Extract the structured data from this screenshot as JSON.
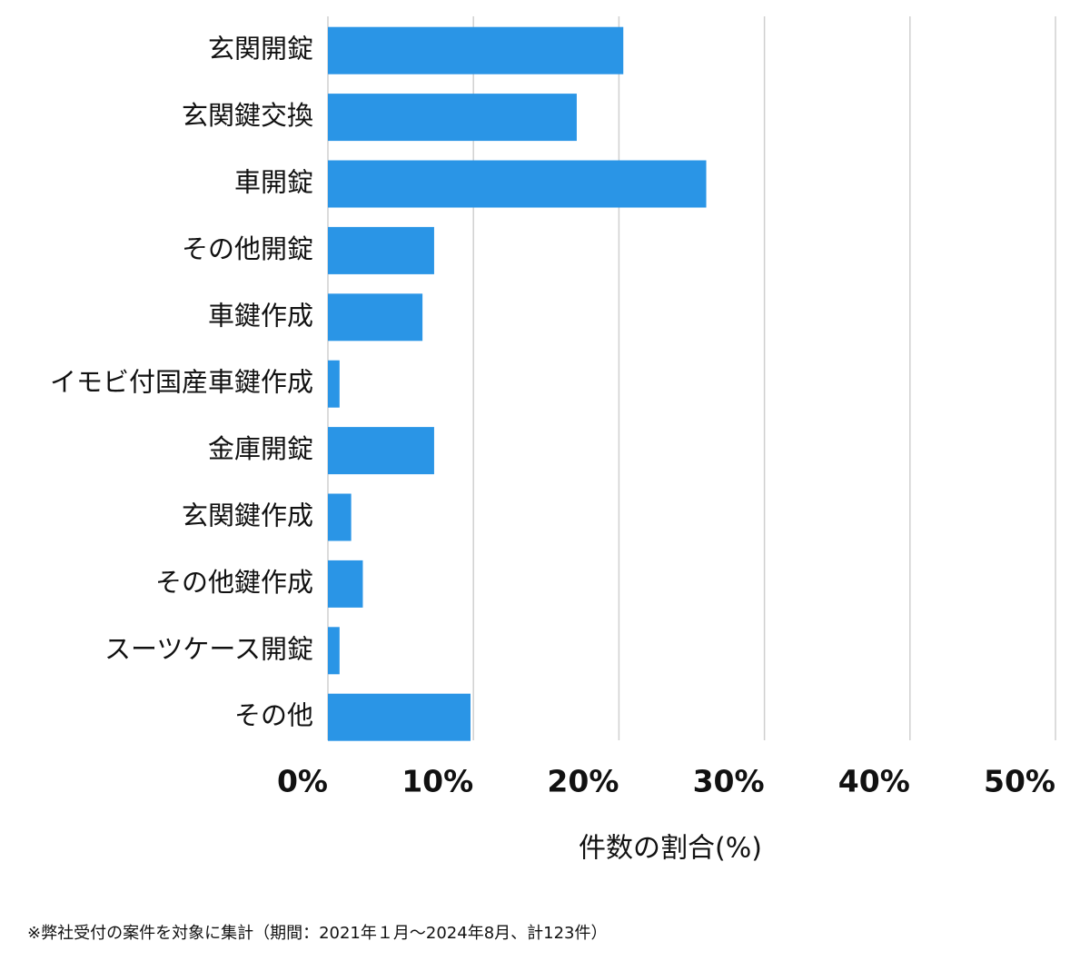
{
  "chart_data": {
    "type": "bar",
    "orientation": "horizontal",
    "categories": [
      "玄関開錠",
      "玄関鍵交換",
      "車開錠",
      "その他開錠",
      "車鍵作成",
      "イモビ付国産車鍵作成",
      "金庫開錠",
      "玄関鍵作成",
      "その他鍵作成",
      "スーツケース開錠",
      "その他"
    ],
    "values": [
      20.3,
      17.1,
      26.0,
      7.3,
      6.5,
      0.8,
      7.3,
      1.6,
      2.4,
      0.8,
      9.8
    ],
    "color": "#2a95e6",
    "xlim": [
      0,
      50
    ],
    "xticks": [
      {
        "value": 0,
        "label": "0%"
      },
      {
        "value": 10,
        "label": "10%"
      },
      {
        "value": 20,
        "label": "20%"
      },
      {
        "value": 30,
        "label": "30%"
      },
      {
        "value": 40,
        "label": "40%"
      },
      {
        "value": 50,
        "label": "50%"
      }
    ],
    "x_label": "件数の割合(%)",
    "grid": true,
    "footnote": "※弊社受付の案件を対象に集計（期間：2021年１月〜2024年8月、計123件）"
  }
}
